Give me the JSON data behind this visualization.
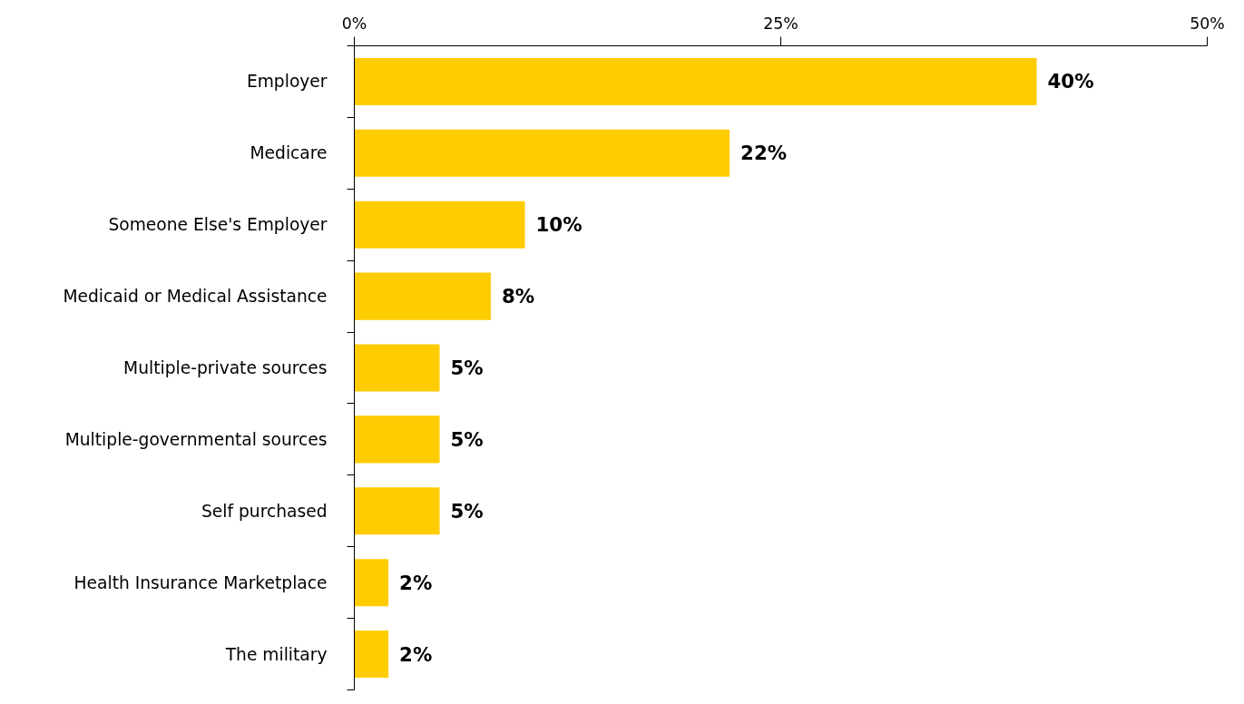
{
  "chart_data": {
    "type": "bar",
    "orientation": "horizontal",
    "categories": [
      "Employer",
      "Medicare",
      "Someone Else's Employer",
      "Medicaid or Medical Assistance",
      "Multiple-private sources",
      "Multiple-governmental sources",
      "Self purchased",
      "Health Insurance Marketplace",
      "The military"
    ],
    "values": [
      40,
      22,
      10,
      8,
      5,
      5,
      5,
      2,
      2
    ],
    "value_labels": [
      "40%",
      "22%",
      "10%",
      "8%",
      "5%",
      "5%",
      "5%",
      "2%",
      "2%"
    ],
    "color": "#ffcc00",
    "xlim": [
      0,
      50
    ],
    "xticks": [
      {
        "value": 0,
        "label": "0%"
      },
      {
        "value": 25,
        "label": "25%"
      },
      {
        "value": 50,
        "label": "50%"
      }
    ],
    "grid": false
  }
}
